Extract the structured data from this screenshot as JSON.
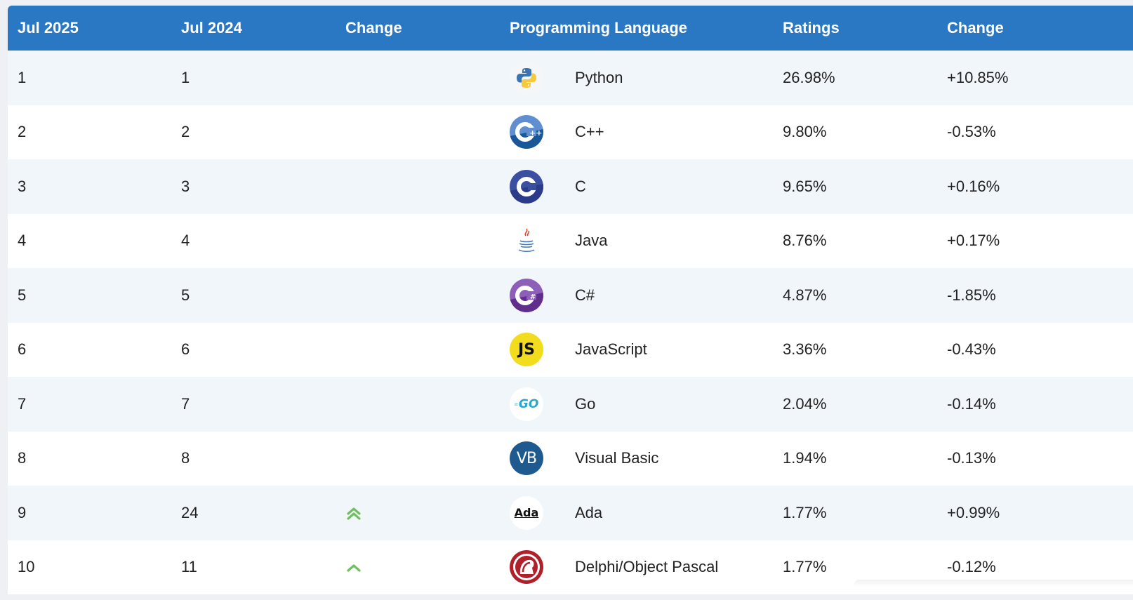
{
  "header": {
    "col_now": "Jul 2025",
    "col_prev": "Jul 2024",
    "col_change": "Change",
    "col_language": "Programming Language",
    "col_ratings": "Ratings",
    "col_ratings_change": "Change"
  },
  "rows": [
    {
      "now": "1",
      "prev": "1",
      "trend": "",
      "language": "Python",
      "logo": "python-icon",
      "ratings": "26.98%",
      "change": "+10.85%"
    },
    {
      "now": "2",
      "prev": "2",
      "trend": "",
      "language": "C++",
      "logo": "cpp-icon",
      "ratings": "9.80%",
      "change": "-0.53%"
    },
    {
      "now": "3",
      "prev": "3",
      "trend": "",
      "language": "C",
      "logo": "c-icon",
      "ratings": "9.65%",
      "change": "+0.16%"
    },
    {
      "now": "4",
      "prev": "4",
      "trend": "",
      "language": "Java",
      "logo": "java-icon",
      "ratings": "8.76%",
      "change": "+0.17%"
    },
    {
      "now": "5",
      "prev": "5",
      "trend": "",
      "language": "C#",
      "logo": "csharp-icon",
      "ratings": "4.87%",
      "change": "-1.85%"
    },
    {
      "now": "6",
      "prev": "6",
      "trend": "",
      "language": "JavaScript",
      "logo": "javascript-icon",
      "ratings": "3.36%",
      "change": "-0.43%"
    },
    {
      "now": "7",
      "prev": "7",
      "trend": "",
      "language": "Go",
      "logo": "go-icon",
      "ratings": "2.04%",
      "change": "-0.14%"
    },
    {
      "now": "8",
      "prev": "8",
      "trend": "",
      "language": "Visual Basic",
      "logo": "visual-basic-icon",
      "ratings": "1.94%",
      "change": "-0.13%"
    },
    {
      "now": "9",
      "prev": "24",
      "trend": "double-up-arrow-icon",
      "language": "Ada",
      "logo": "ada-icon",
      "ratings": "1.77%",
      "change": "+0.99%"
    },
    {
      "now": "10",
      "prev": "11",
      "trend": "up-arrow-icon",
      "language": "Delphi/Object Pascal",
      "logo": "delphi-icon",
      "ratings": "1.77%",
      "change": "-0.12%"
    }
  ],
  "logo_text": {
    "javascript": "JS",
    "go": "GO",
    "visual_basic": "VB",
    "ada": "Ada"
  },
  "colors": {
    "header_bg": "#2a77c4",
    "row_alt_bg": "#f1f6fb",
    "trend_up": "#6fbf5e"
  }
}
